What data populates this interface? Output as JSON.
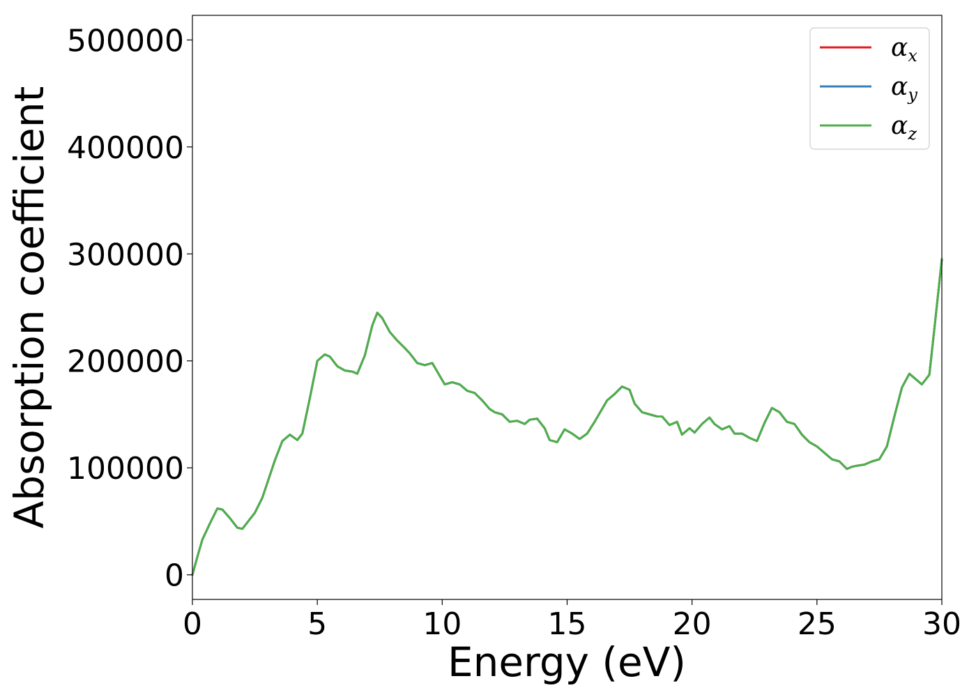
{
  "chart_data": {
    "type": "line",
    "title": "",
    "xlabel": "Energy (eV)",
    "ylabel": "Absorption coefficient",
    "xlim": [
      0,
      30
    ],
    "ylim": [
      -23000,
      523000
    ],
    "x_ticks": [
      0,
      5,
      10,
      15,
      20,
      25,
      30
    ],
    "x_tick_labels": [
      "0",
      "5",
      "10",
      "15",
      "20",
      "25",
      "30"
    ],
    "y_ticks": [
      0,
      100000,
      200000,
      300000,
      400000,
      500000
    ],
    "y_tick_labels": [
      "0",
      "100000",
      "200000",
      "300000",
      "400000",
      "500000"
    ],
    "grid": false,
    "legend_position": "top-right",
    "legend": [
      {
        "symbol": "α",
        "subscript": "x",
        "color": "#e41a1c"
      },
      {
        "symbol": "α",
        "subscript": "y",
        "color": "#377eb8"
      },
      {
        "symbol": "α",
        "subscript": "z",
        "color": "#4daf4a"
      }
    ],
    "x": [
      0,
      0.2,
      0.4,
      0.7,
      1.0,
      1.2,
      1.5,
      1.8,
      2.0,
      2.2,
      2.5,
      2.8,
      3.0,
      3.3,
      3.6,
      3.9,
      4.2,
      4.4,
      4.7,
      5.0,
      5.3,
      5.5,
      5.8,
      6.1,
      6.4,
      6.6,
      6.9,
      7.2,
      7.4,
      7.6,
      7.9,
      8.2,
      8.5,
      8.7,
      9.0,
      9.3,
      9.6,
      9.8,
      10.1,
      10.4,
      10.7,
      11.0,
      11.3,
      11.6,
      11.9,
      12.1,
      12.4,
      12.7,
      13.0,
      13.3,
      13.5,
      13.8,
      14.1,
      14.3,
      14.6,
      14.9,
      15.2,
      15.5,
      15.8,
      16.1,
      16.3,
      16.6,
      16.9,
      17.2,
      17.5,
      17.7,
      18.0,
      18.3,
      18.6,
      18.8,
      19.1,
      19.4,
      19.6,
      19.9,
      20.1,
      20.4,
      20.7,
      20.9,
      21.2,
      21.5,
      21.7,
      22.0,
      22.3,
      22.6,
      22.9,
      23.2,
      23.5,
      23.8,
      24.1,
      24.4,
      24.7,
      25.0,
      25.3,
      25.6,
      25.9,
      26.2,
      26.4,
      26.6,
      26.9,
      27.2,
      27.5,
      27.8,
      28.1,
      28.4,
      28.7,
      28.9,
      29.2,
      29.5,
      29.7,
      30.0
    ],
    "y": [
      0,
      17000,
      33000,
      48000,
      62000,
      61000,
      53000,
      44000,
      43000,
      49000,
      58000,
      72000,
      86000,
      107000,
      125000,
      131000,
      126000,
      132000,
      165000,
      200000,
      206000,
      204000,
      195000,
      191000,
      190000,
      188000,
      205000,
      233000,
      245000,
      240000,
      227000,
      219000,
      212000,
      207000,
      198000,
      196000,
      198000,
      190000,
      178000,
      180000,
      178000,
      172000,
      170000,
      163000,
      155000,
      152000,
      150000,
      143000,
      144000,
      141000,
      145000,
      146000,
      137000,
      126000,
      124000,
      136000,
      132000,
      127000,
      132000,
      143000,
      151000,
      163000,
      169000,
      176000,
      173000,
      160000,
      152000,
      150000,
      148000,
      148000,
      140000,
      143000,
      131000,
      137000,
      133000,
      141000,
      147000,
      141000,
      136000,
      139000,
      132000,
      132000,
      128000,
      125000,
      142000,
      156000,
      152000,
      143000,
      141000,
      131000,
      124000,
      120000,
      114000,
      108000,
      106000,
      99000,
      101000,
      102000,
      103000,
      106000,
      108000,
      120000,
      148000,
      175000,
      188000,
      184000,
      178000,
      187000,
      230000,
      295000
    ],
    "series": [
      {
        "name": "αx",
        "color": "#e41a1c"
      },
      {
        "name": "αy",
        "color": "#377eb8"
      },
      {
        "name": "αz",
        "color": "#4daf4a"
      }
    ]
  }
}
